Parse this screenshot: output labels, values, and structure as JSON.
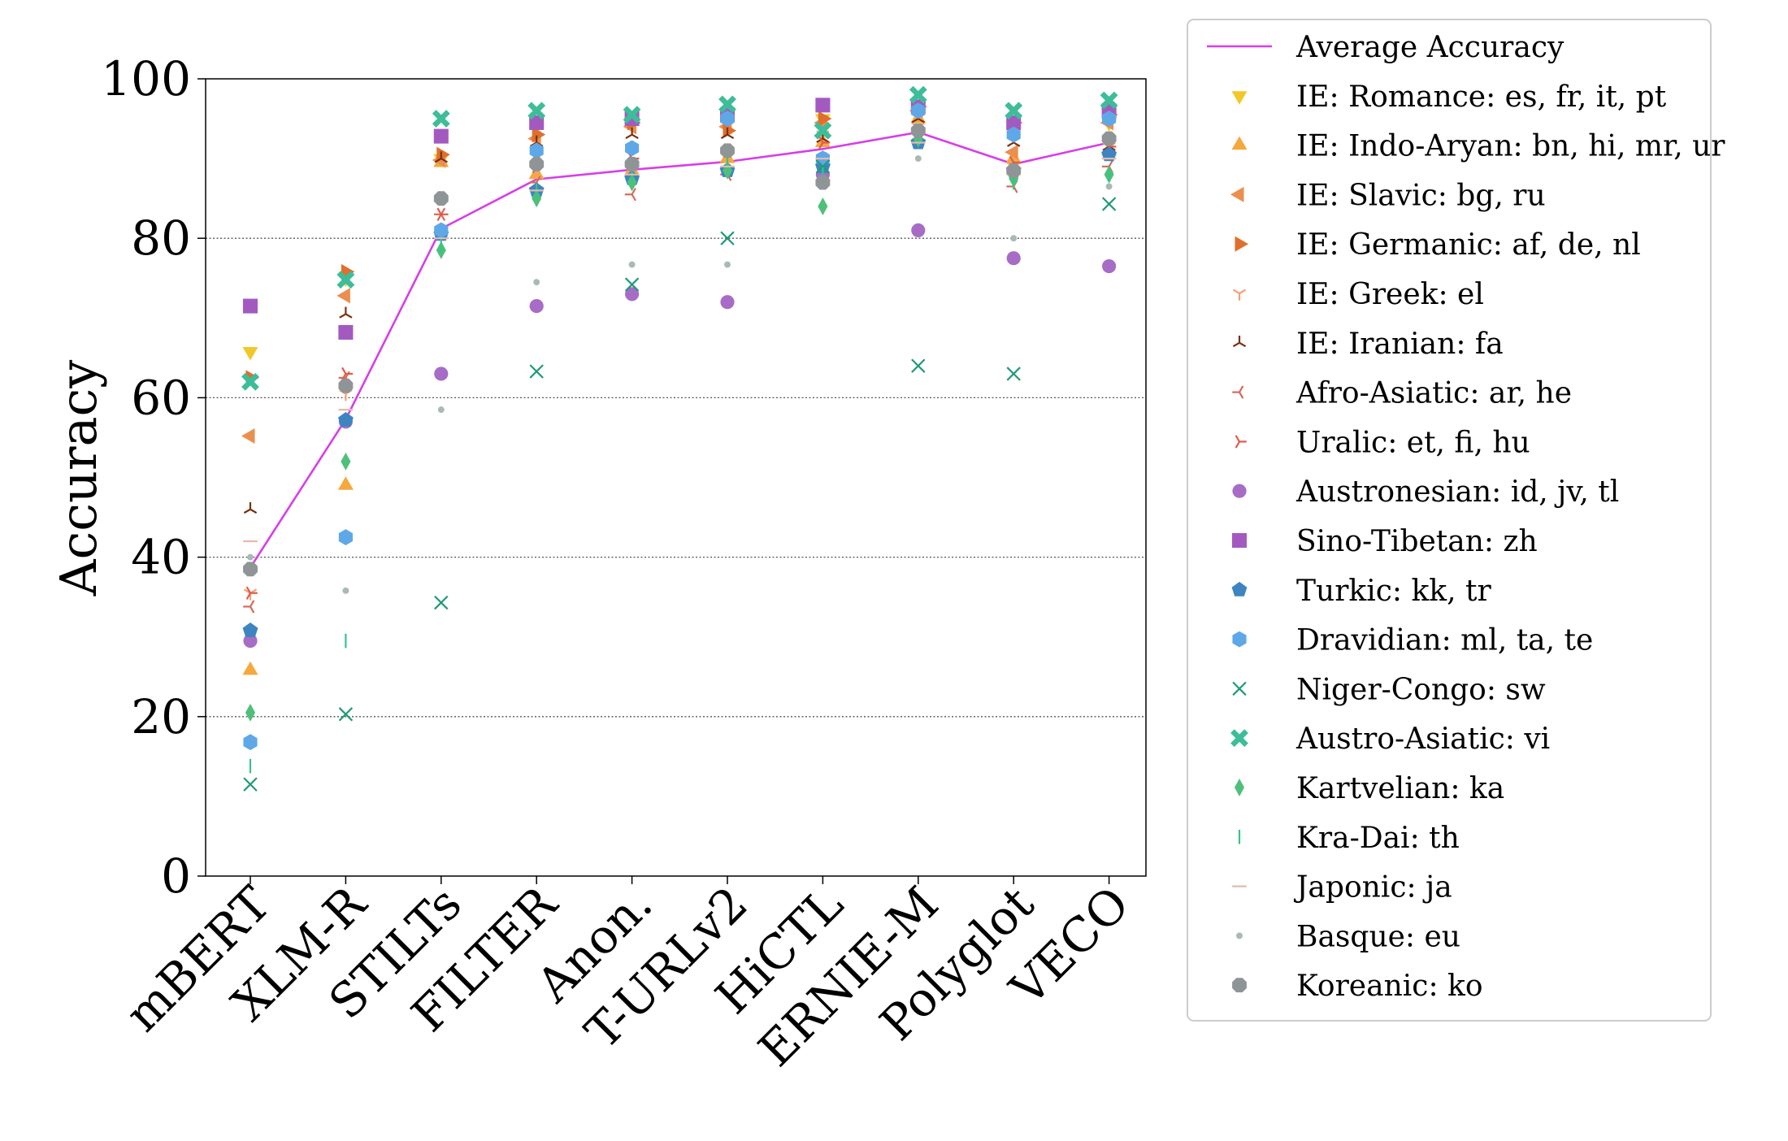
{
  "chart_data": {
    "type": "scatter",
    "title": "",
    "xlabel": "",
    "ylabel": "Accuracy",
    "ylim": [
      0,
      100
    ],
    "yticks": [
      0,
      20,
      40,
      60,
      80,
      100
    ],
    "grid": "horizontal dotted",
    "legend_position": "right, outside plot",
    "categories": [
      "mBERT",
      "XLM-R",
      "STILTs",
      "FILTER",
      "Anon.",
      "T-URLv2",
      "HiCTL",
      "ERNIE-M",
      "Polyglot",
      "VECO"
    ],
    "series": [
      {
        "name": "Average Accuracy",
        "marker": "line",
        "color": "#d63fe8",
        "values": [
          38.7,
          57.3,
          81.2,
          87.4,
          88.6,
          89.6,
          91.2,
          93.3,
          89.3,
          92.0
        ]
      },
      {
        "name": "IE: Romance: es, fr, it, pt",
        "marker": "triangle-down",
        "color": "#f2c829",
        "values": [
          65.8,
          75.0,
          90.0,
          94.0,
          94.5,
          95.0,
          95.0,
          96.5,
          94.0,
          94.5
        ]
      },
      {
        "name": "IE: Indo-Aryan: bn, hi, mr, ur",
        "marker": "triangle-up",
        "color": "#f5a83c",
        "values": [
          25.8,
          49.0,
          89.5,
          88.0,
          88.5,
          90.0,
          92.0,
          95.0,
          90.0,
          91.0
        ]
      },
      {
        "name": "IE: Slavic: bg, ru",
        "marker": "triangle-left",
        "color": "#eb8f4f",
        "values": [
          55.2,
          72.8,
          89.8,
          92.5,
          94.0,
          94.0,
          94.5,
          96.0,
          90.8,
          94.5
        ]
      },
      {
        "name": "IE: Germanic: af, de, nl",
        "marker": "triangle-right",
        "color": "#e06f2b",
        "values": [
          62.5,
          75.8,
          90.5,
          93.0,
          94.5,
          93.5,
          95.0,
          96.5,
          94.5,
          95.5
        ]
      },
      {
        "name": "IE: Greek: el",
        "marker": "tri-down",
        "color": "#f5a076",
        "values": [
          35.5,
          60.5,
          85.0,
          88.5,
          89.0,
          91.0,
          93.0,
          94.0,
          89.0,
          91.5
        ]
      },
      {
        "name": "IE: Iranian: fa",
        "marker": "tri-up",
        "color": "#7a3010",
        "values": [
          46.0,
          70.5,
          90.0,
          92.0,
          93.0,
          93.0,
          92.5,
          95.0,
          92.0,
          91.5
        ]
      },
      {
        "name": "Afro-Asiatic: ar, he",
        "marker": "tri-left",
        "color": "#d76a5a",
        "values": [
          33.8,
          62.5,
          83.0,
          87.0,
          85.5,
          88.0,
          90.0,
          92.0,
          86.5,
          89.0
        ]
      },
      {
        "name": "Uralic: et, fi, hu",
        "marker": "tri-right",
        "color": "#e25a48",
        "values": [
          35.5,
          63.0,
          83.0,
          89.0,
          90.0,
          91.0,
          92.0,
          93.5,
          89.5,
          91.5
        ]
      },
      {
        "name": "Austronesian: id, jv, tl",
        "marker": "circle",
        "color": "#a76cc6",
        "values": [
          29.5,
          57.0,
          63.0,
          71.5,
          73.0,
          72.0,
          88.0,
          81.0,
          77.5,
          76.5
        ]
      },
      {
        "name": "Sino-Tibetan: zh",
        "marker": "square",
        "color": "#a35ac0",
        "values": [
          71.5,
          68.2,
          92.8,
          94.5,
          95.0,
          95.5,
          96.7,
          96.5,
          94.5,
          96.0
        ]
      },
      {
        "name": "Turkic: kk, tr",
        "marker": "pentagon",
        "color": "#3d85c0",
        "values": [
          30.8,
          57.2,
          80.5,
          86.0,
          87.5,
          88.5,
          89.0,
          92.0,
          88.5,
          90.5
        ]
      },
      {
        "name": "Dravidian: ml, ta, te",
        "marker": "hexagon",
        "color": "#5fa8e8",
        "values": [
          16.8,
          42.5,
          81.0,
          91.0,
          91.3,
          95.0,
          90.0,
          96.0,
          93.0,
          95.0
        ]
      },
      {
        "name": "Niger-Congo: sw",
        "marker": "x",
        "color": "#1e9a78",
        "values": [
          11.5,
          20.3,
          34.3,
          63.3,
          74.2,
          80.0,
          89.0,
          64.0,
          63.0,
          84.3
        ]
      },
      {
        "name": "Austro-Asiatic: vi",
        "marker": "x-filled",
        "color": "#3dbd99",
        "values": [
          62.0,
          74.8,
          95.0,
          96.0,
          95.5,
          96.8,
          93.5,
          98.0,
          96.0,
          97.3
        ]
      },
      {
        "name": "Kartvelian: ka",
        "marker": "thin-diamond",
        "color": "#4fc07a",
        "values": [
          20.5,
          52.0,
          78.5,
          85.0,
          87.0,
          88.5,
          84.0,
          92.5,
          87.5,
          88.0
        ]
      },
      {
        "name": "Kra-Dai: th",
        "marker": "vline",
        "color": "#34c48a",
        "values": [
          13.8,
          29.5,
          79.0,
          86.0,
          88.0,
          90.0,
          88.0,
          93.0,
          87.0,
          88.0
        ]
      },
      {
        "name": "Japonic: ja",
        "marker": "hline",
        "color": "#e6b8ae",
        "values": [
          42.0,
          58.5,
          80.0,
          86.0,
          88.0,
          89.0,
          90.0,
          92.0,
          88.0,
          90.0
        ]
      },
      {
        "name": "Basque: eu",
        "marker": "point",
        "color": "#a9bab3",
        "values": [
          40.0,
          35.8,
          58.5,
          74.5,
          76.7,
          76.7,
          87.0,
          90.0,
          80.0,
          86.5
        ]
      },
      {
        "name": "Koreanic: ko",
        "marker": "octagon",
        "color": "#8f9596",
        "values": [
          38.5,
          61.5,
          85.0,
          89.3,
          89.3,
          91.0,
          87.0,
          93.5,
          88.5,
          92.5
        ]
      }
    ]
  }
}
